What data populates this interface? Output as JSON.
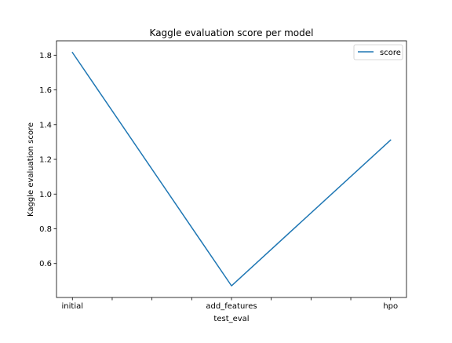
{
  "chart_data": {
    "type": "line",
    "title": "Kaggle evaluation score per model",
    "xlabel": "test_eval",
    "ylabel": "Kaggle evaluation score",
    "categories": [
      "initial",
      "add_features",
      "hpo"
    ],
    "series": [
      {
        "name": "score",
        "values": [
          1.8156,
          0.4716,
          1.3112
        ],
        "color": "#1f77b4"
      }
    ],
    "ylim": [
      0.4044,
      1.8828
    ],
    "yticks": [
      0.6,
      0.8,
      1.0,
      1.2,
      1.4,
      1.6,
      1.8
    ],
    "ytick_labels": [
      "0.6",
      "0.8",
      "1.0",
      "1.2",
      "1.4",
      "1.6",
      "1.8"
    ],
    "xlim": [
      -0.1,
      2.1
    ],
    "xtick_positions": [
      0,
      0.25,
      0.5,
      0.75,
      1,
      1.25,
      1.5,
      1.75,
      2
    ],
    "legend_position": "upper right",
    "grid": false
  }
}
